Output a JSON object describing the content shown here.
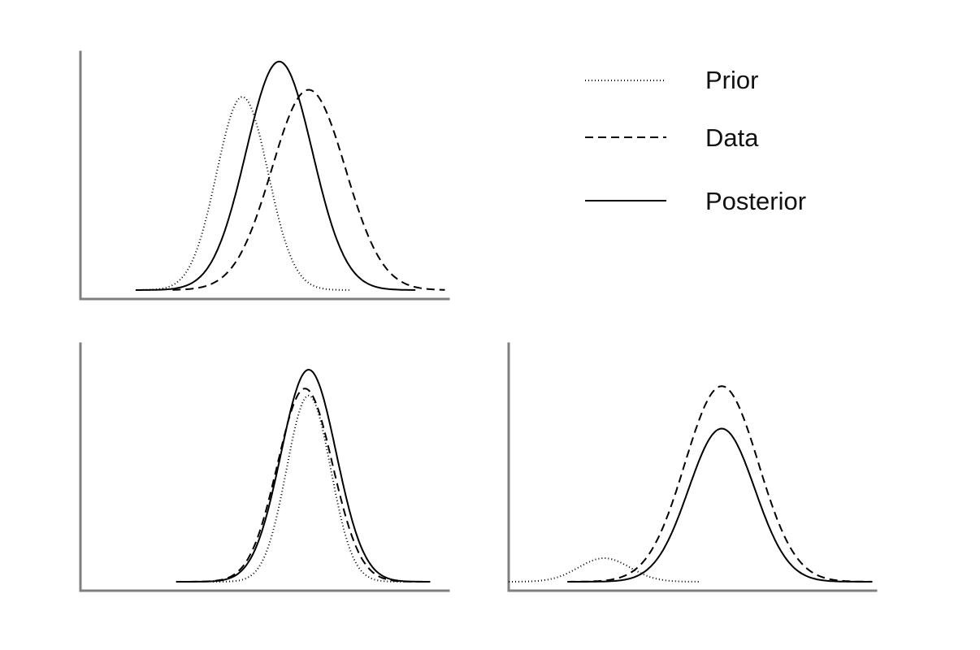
{
  "figure": {
    "legend": [
      {
        "key": "prior",
        "label": "Prior",
        "style": "dotted"
      },
      {
        "key": "data",
        "label": "Data",
        "style": "dashed"
      },
      {
        "key": "posterior",
        "label": "Posterior",
        "style": "solid"
      }
    ],
    "colors": {
      "axis": "#7f7f7f",
      "curve": "#000000",
      "text": "#111111"
    },
    "panels": [
      {
        "name": "panel-top-left",
        "curves": [
          {
            "key": "prior",
            "style": "dotted",
            "mean": 0.44,
            "sd": 0.07,
            "height": 0.82
          },
          {
            "key": "data",
            "style": "dashed",
            "mean": 0.62,
            "sd": 0.1,
            "height": 0.85
          },
          {
            "key": "posterior",
            "style": "solid",
            "mean": 0.54,
            "sd": 0.09,
            "height": 0.97
          }
        ]
      },
      {
        "name": "panel-bottom-left",
        "curves": [
          {
            "key": "prior",
            "style": "dotted",
            "mean": 0.62,
            "sd": 0.06,
            "height": 0.79
          },
          {
            "key": "data",
            "style": "dashed",
            "mean": 0.61,
            "sd": 0.075,
            "height": 0.82
          },
          {
            "key": "posterior",
            "style": "solid",
            "mean": 0.62,
            "sd": 0.075,
            "height": 0.9
          }
        ]
      },
      {
        "name": "panel-bottom-right",
        "curves": [
          {
            "key": "prior",
            "style": "dotted",
            "mean": 0.26,
            "sd": 0.07,
            "height": 0.1
          },
          {
            "key": "data",
            "style": "dashed",
            "mean": 0.58,
            "sd": 0.1,
            "height": 0.83
          },
          {
            "key": "posterior",
            "style": "solid",
            "mean": 0.58,
            "sd": 0.09,
            "height": 0.65
          }
        ]
      }
    ]
  }
}
